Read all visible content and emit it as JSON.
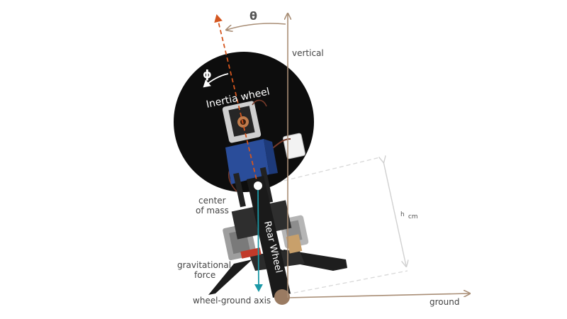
{
  "labels": {
    "theta": "θ",
    "phi": "ϕ",
    "vertical": "vertical",
    "inertia_wheel": "Inertia wheel",
    "center_of_mass_line1": "center",
    "center_of_mass_line2": "of mass",
    "h_cm_main": "h",
    "h_cm_sub": "cm",
    "rear_wheel": "Rear Wheel",
    "gravitational_force_line1": "gravitational",
    "gravitational_force_line2": "force",
    "wheel_ground_axis": "wheel-ground axis",
    "ground": "ground"
  },
  "colors": {
    "axis_brown": "#a88d75",
    "tilt_orange": "#d4561f",
    "gravity_teal": "#1b98a6",
    "guide_gray": "#d8d8d8",
    "wheel_black": "#0d0d0d",
    "body_blue": "#2a4d9a"
  }
}
